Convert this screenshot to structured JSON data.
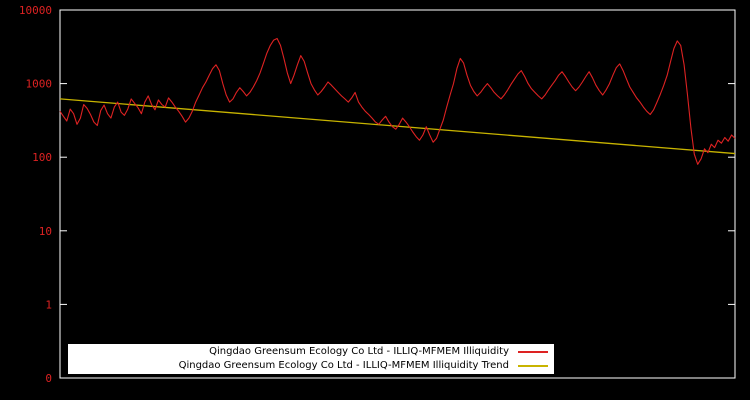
{
  "chart_data": {
    "type": "line",
    "title": "",
    "plot_background": "#000000",
    "frame_color": "#ffffff",
    "x_axis": {
      "ticks": [],
      "note": "no visible x tick labels"
    },
    "y_axis": {
      "scale": "log",
      "range": [
        0.1,
        10000
      ],
      "tick_values": [
        10000,
        1000,
        100,
        10,
        1,
        0.1
      ],
      "tick_labels": [
        "10000",
        "1000",
        "100",
        "10",
        "1",
        "0"
      ],
      "label_color": "#dd2222"
    },
    "legend": {
      "position": "bottom-center",
      "background": "#ffffff",
      "text_color": "#000000"
    },
    "grid": false,
    "series": [
      {
        "name": "Qingdao Greensum Ecology Co Ltd - ILLIQ-MFMEM Illiquidity",
        "color": "#dd2222",
        "values": [
          420,
          360,
          310,
          450,
          390,
          280,
          340,
          520,
          460,
          380,
          300,
          270,
          430,
          510,
          390,
          340,
          480,
          560,
          410,
          370,
          450,
          620,
          540,
          470,
          390,
          560,
          680,
          520,
          440,
          600,
          520,
          480,
          640,
          560,
          480,
          420,
          360,
          300,
          340,
          420,
          560,
          700,
          880,
          1050,
          1300,
          1600,
          1800,
          1500,
          1000,
          700,
          560,
          620,
          760,
          880,
          780,
          680,
          760,
          900,
          1100,
          1400,
          1900,
          2600,
          3300,
          3900,
          4100,
          3300,
          2200,
          1400,
          1000,
          1300,
          1800,
          2400,
          2000,
          1400,
          1000,
          820,
          700,
          780,
          900,
          1050,
          950,
          850,
          760,
          680,
          620,
          560,
          640,
          760,
          560,
          480,
          420,
          380,
          340,
          300,
          280,
          320,
          360,
          300,
          260,
          240,
          280,
          340,
          300,
          260,
          220,
          190,
          170,
          200,
          260,
          200,
          160,
          180,
          240,
          320,
          480,
          700,
          1000,
          1600,
          2200,
          1900,
          1300,
          950,
          780,
          680,
          760,
          880,
          1000,
          880,
          760,
          680,
          620,
          700,
          820,
          980,
          1150,
          1350,
          1500,
          1250,
          1000,
          850,
          760,
          680,
          620,
          700,
          820,
          950,
          1100,
          1300,
          1450,
          1250,
          1050,
          900,
          800,
          900,
          1050,
          1250,
          1450,
          1200,
          950,
          800,
          700,
          820,
          1000,
          1300,
          1650,
          1850,
          1500,
          1150,
          900,
          760,
          640,
          560,
          480,
          420,
          380,
          440,
          560,
          720,
          950,
          1300,
          2000,
          3000,
          3800,
          3300,
          1800,
          700,
          250,
          110,
          80,
          95,
          130,
          115,
          150,
          135,
          170,
          155,
          185,
          165,
          200,
          180
        ]
      },
      {
        "name": "Qingdao Greensum Ecology Co Ltd - ILLIQ-MFMEM Illiquidity Trend",
        "color": "#c8b400",
        "trend": {
          "shape": "log-linear",
          "start": 620,
          "end": 112
        }
      }
    ]
  }
}
